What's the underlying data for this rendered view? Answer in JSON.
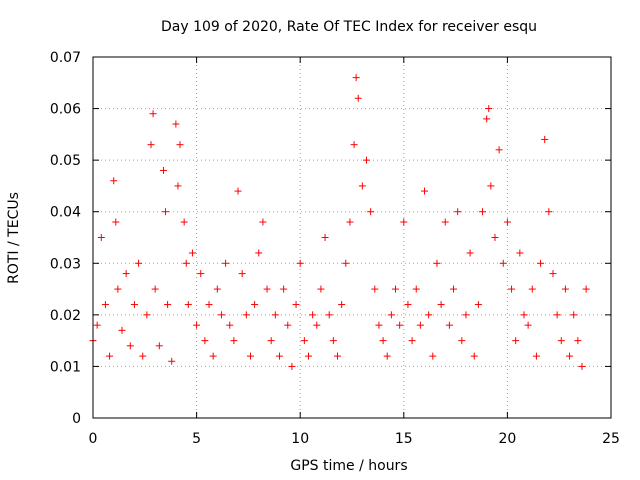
{
  "chart_data": {
    "type": "scatter",
    "title": "Day 109 of 2020, Rate Of TEC Index for receiver esqu",
    "xlabel": "GPS time / hours",
    "ylabel": "ROTI / TECUs",
    "xlim": [
      0,
      25
    ],
    "ylim": [
      0,
      0.07
    ],
    "x_ticks": [
      0,
      5,
      10,
      15,
      20,
      25
    ],
    "y_ticks": [
      0,
      0.01,
      0.02,
      0.03,
      0.04,
      0.05,
      0.06,
      0.07
    ],
    "x_tick_labels": [
      "0",
      "5",
      "10",
      "15",
      "20",
      "25"
    ],
    "y_tick_labels": [
      "0",
      "0.01",
      "0.02",
      "0.03",
      "0.04",
      "0.05",
      "0.06",
      "0.07"
    ],
    "grid": true,
    "marker": "+",
    "color": "#ff0000",
    "series": [
      {
        "x": [
          0.0,
          0.2,
          0.4,
          0.6,
          0.8,
          1.0,
          1.1,
          1.2,
          1.4,
          1.6,
          1.8,
          2.0,
          2.2,
          2.4,
          2.6,
          2.8,
          2.9,
          3.0,
          3.2,
          3.4,
          3.5,
          3.6,
          3.8,
          4.0,
          4.1,
          4.2,
          4.4,
          4.5,
          4.6,
          4.8,
          5.0,
          5.2,
          5.4,
          5.6,
          5.8,
          6.0,
          6.2,
          6.4,
          6.6,
          6.8,
          7.0,
          7.2,
          7.4,
          7.6,
          7.8,
          8.0,
          8.2,
          8.4,
          8.6,
          8.8,
          9.0,
          9.2,
          9.4,
          9.6,
          9.8,
          10.0,
          10.2,
          10.4,
          10.6,
          10.8,
          11.0,
          11.2,
          11.4,
          11.6,
          11.8,
          12.0,
          12.2,
          12.4,
          12.6,
          12.7,
          12.8,
          13.0,
          13.2,
          13.4,
          13.6,
          13.8,
          14.0,
          14.2,
          14.4,
          14.6,
          14.8,
          15.0,
          15.2,
          15.4,
          15.6,
          15.8,
          16.0,
          16.2,
          16.4,
          16.6,
          16.8,
          17.0,
          17.2,
          17.4,
          17.6,
          17.8,
          18.0,
          18.2,
          18.4,
          18.6,
          18.8,
          19.0,
          19.1,
          19.2,
          19.4,
          19.6,
          19.8,
          20.0,
          20.2,
          20.4,
          20.6,
          20.8,
          21.0,
          21.2,
          21.4,
          21.6,
          21.8,
          22.0,
          22.2,
          22.4,
          22.6,
          22.8,
          23.0,
          23.2,
          23.4,
          23.6,
          23.8
        ],
        "y": [
          0.015,
          0.018,
          0.035,
          0.022,
          0.012,
          0.046,
          0.038,
          0.025,
          0.017,
          0.028,
          0.014,
          0.022,
          0.03,
          0.012,
          0.02,
          0.053,
          0.059,
          0.025,
          0.014,
          0.048,
          0.04,
          0.022,
          0.011,
          0.057,
          0.045,
          0.053,
          0.038,
          0.03,
          0.022,
          0.032,
          0.018,
          0.028,
          0.015,
          0.022,
          0.012,
          0.025,
          0.02,
          0.03,
          0.018,
          0.015,
          0.044,
          0.028,
          0.02,
          0.012,
          0.022,
          0.032,
          0.038,
          0.025,
          0.015,
          0.02,
          0.012,
          0.025,
          0.018,
          0.01,
          0.022,
          0.03,
          0.015,
          0.012,
          0.02,
          0.018,
          0.025,
          0.035,
          0.02,
          0.015,
          0.012,
          0.022,
          0.03,
          0.038,
          0.053,
          0.066,
          0.062,
          0.045,
          0.05,
          0.04,
          0.025,
          0.018,
          0.015,
          0.012,
          0.02,
          0.025,
          0.018,
          0.038,
          0.022,
          0.015,
          0.025,
          0.018,
          0.044,
          0.02,
          0.012,
          0.03,
          0.022,
          0.038,
          0.018,
          0.025,
          0.04,
          0.015,
          0.02,
          0.032,
          0.012,
          0.022,
          0.04,
          0.058,
          0.06,
          0.045,
          0.035,
          0.052,
          0.03,
          0.038,
          0.025,
          0.015,
          0.032,
          0.02,
          0.018,
          0.025,
          0.012,
          0.03,
          0.054,
          0.04,
          0.028,
          0.02,
          0.015,
          0.025,
          0.012,
          0.02,
          0.015,
          0.01,
          0.025
        ]
      }
    ]
  }
}
